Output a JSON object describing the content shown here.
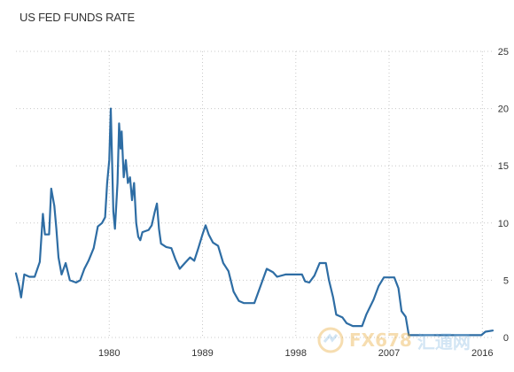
{
  "title": "US FED FUNDS RATE",
  "colors": {
    "series": "#2e6da4",
    "grid": "#c8c8c8",
    "axis_text": "#333333",
    "watermark_orange": "#e8a020",
    "watermark_blue": "#7fb6e0"
  },
  "watermark": {
    "text_a": "FX678",
    "text_b": "汇通网",
    "icon": "fx678-logo-icon"
  },
  "chart_data": {
    "type": "line",
    "title": "US FED FUNDS RATE",
    "xlabel": "",
    "ylabel": "",
    "xlim": [
      1971,
      2017
    ],
    "ylim": [
      0,
      25
    ],
    "x_ticks": [
      1980,
      1989,
      1998,
      2007,
      2016
    ],
    "y_ticks": [
      0,
      5,
      10,
      15,
      20,
      25
    ],
    "y_axis_position": "right",
    "grid": true,
    "series": [
      {
        "name": "",
        "points": [
          [
            1971.0,
            5.6
          ],
          [
            1971.3,
            4.5
          ],
          [
            1971.5,
            3.5
          ],
          [
            1971.8,
            5.5
          ],
          [
            1972.3,
            5.3
          ],
          [
            1972.8,
            5.3
          ],
          [
            1973.3,
            6.6
          ],
          [
            1973.6,
            10.8
          ],
          [
            1973.8,
            9.0
          ],
          [
            1974.2,
            9.0
          ],
          [
            1974.4,
            13.0
          ],
          [
            1974.7,
            11.5
          ],
          [
            1974.9,
            9.5
          ],
          [
            1975.1,
            7.0
          ],
          [
            1975.4,
            5.5
          ],
          [
            1975.8,
            6.5
          ],
          [
            1976.2,
            5.0
          ],
          [
            1976.8,
            4.8
          ],
          [
            1977.2,
            5.0
          ],
          [
            1977.6,
            6.0
          ],
          [
            1978.0,
            6.7
          ],
          [
            1978.5,
            7.8
          ],
          [
            1978.9,
            9.7
          ],
          [
            1979.3,
            10.0
          ],
          [
            1979.6,
            10.5
          ],
          [
            1979.8,
            13.5
          ],
          [
            1980.0,
            15.5
          ],
          [
            1980.15,
            20.0
          ],
          [
            1980.4,
            11.0
          ],
          [
            1980.55,
            9.5
          ],
          [
            1980.8,
            13.5
          ],
          [
            1980.95,
            18.7
          ],
          [
            1981.1,
            16.5
          ],
          [
            1981.2,
            18.0
          ],
          [
            1981.4,
            14.0
          ],
          [
            1981.6,
            15.5
          ],
          [
            1981.8,
            13.5
          ],
          [
            1982.0,
            14.0
          ],
          [
            1982.2,
            12.0
          ],
          [
            1982.4,
            13.5
          ],
          [
            1982.6,
            10.0
          ],
          [
            1982.8,
            8.8
          ],
          [
            1983.0,
            8.5
          ],
          [
            1983.2,
            9.2
          ],
          [
            1983.8,
            9.4
          ],
          [
            1984.1,
            9.8
          ],
          [
            1984.4,
            11.0
          ],
          [
            1984.6,
            11.7
          ],
          [
            1984.8,
            9.5
          ],
          [
            1985.0,
            8.2
          ],
          [
            1985.5,
            7.9
          ],
          [
            1986.0,
            7.8
          ],
          [
            1986.4,
            6.8
          ],
          [
            1986.8,
            6.0
          ],
          [
            1987.3,
            6.5
          ],
          [
            1987.8,
            7.0
          ],
          [
            1988.2,
            6.7
          ],
          [
            1988.6,
            7.8
          ],
          [
            1989.0,
            9.0
          ],
          [
            1989.3,
            9.8
          ],
          [
            1989.6,
            9.0
          ],
          [
            1990.0,
            8.3
          ],
          [
            1990.5,
            8.0
          ],
          [
            1991.0,
            6.5
          ],
          [
            1991.5,
            5.8
          ],
          [
            1992.0,
            4.0
          ],
          [
            1992.5,
            3.2
          ],
          [
            1993.0,
            3.0
          ],
          [
            1994.0,
            3.0
          ],
          [
            1994.6,
            4.5
          ],
          [
            1995.2,
            6.0
          ],
          [
            1995.8,
            5.7
          ],
          [
            1996.2,
            5.3
          ],
          [
            1997.0,
            5.5
          ],
          [
            1998.0,
            5.5
          ],
          [
            1998.6,
            5.5
          ],
          [
            1998.9,
            4.9
          ],
          [
            1999.3,
            4.8
          ],
          [
            1999.8,
            5.4
          ],
          [
            2000.3,
            6.5
          ],
          [
            2000.9,
            6.5
          ],
          [
            2001.2,
            5.0
          ],
          [
            2001.6,
            3.5
          ],
          [
            2001.9,
            2.0
          ],
          [
            2002.5,
            1.75
          ],
          [
            2002.9,
            1.25
          ],
          [
            2003.5,
            1.0
          ],
          [
            2004.4,
            1.0
          ],
          [
            2004.8,
            2.0
          ],
          [
            2005.5,
            3.3
          ],
          [
            2006.0,
            4.5
          ],
          [
            2006.5,
            5.25
          ],
          [
            2007.5,
            5.25
          ],
          [
            2007.9,
            4.3
          ],
          [
            2008.2,
            2.3
          ],
          [
            2008.6,
            1.8
          ],
          [
            2008.9,
            0.2
          ],
          [
            2015.9,
            0.2
          ],
          [
            2016.3,
            0.5
          ],
          [
            2017.0,
            0.6
          ]
        ]
      }
    ]
  }
}
